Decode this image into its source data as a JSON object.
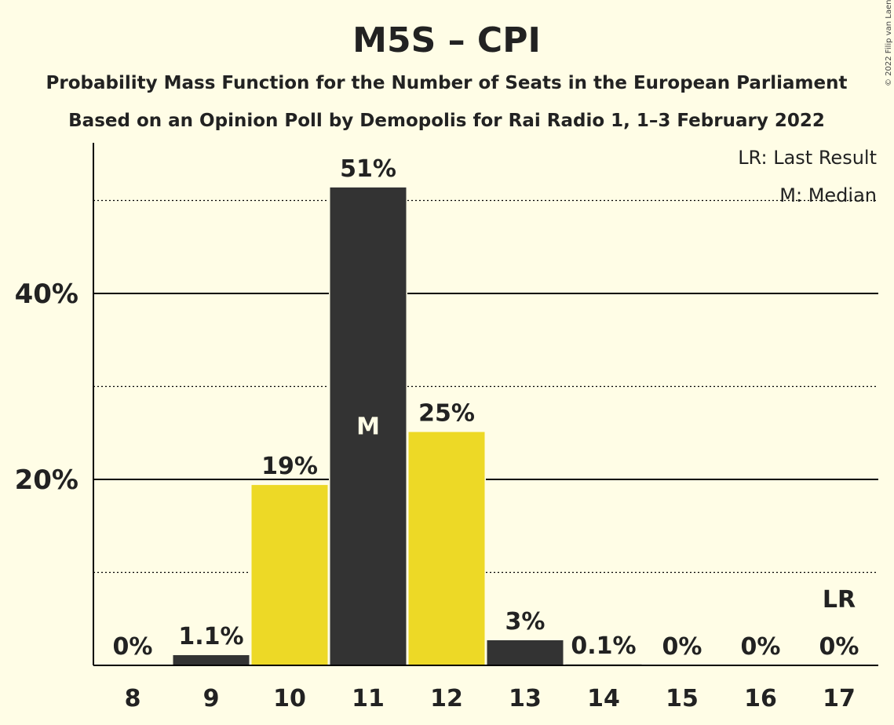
{
  "title": "M5S – CPI",
  "subtitle1": "Probability Mass Function for the Number of Seats in the European Parliament",
  "subtitle2": "Based on an Opinion Poll by Demopolis for Rai Radio 1, 1–3 February 2022",
  "copyright": "© 2022 Filip van Laenen",
  "legend": {
    "lr": "LR: Last Result",
    "median": "M: Median"
  },
  "colors": {
    "background": "#FFFDE6",
    "dark": "#333333",
    "yellow": "#EDD926",
    "text": "#222222"
  },
  "chart_data": {
    "type": "bar",
    "categories": [
      "8",
      "9",
      "10",
      "11",
      "12",
      "13",
      "14",
      "15",
      "16",
      "17"
    ],
    "values": [
      0,
      1.1,
      19.4,
      51.4,
      25.1,
      2.7,
      0.1,
      0,
      0,
      0
    ],
    "labels": [
      "0%",
      "1.1%",
      "19%",
      "51%",
      "25%",
      "3%",
      "0.1%",
      "0%",
      "0%",
      "0%"
    ],
    "bar_colors": [
      "dark",
      "dark",
      "yellow",
      "dark",
      "yellow",
      "dark",
      "dark",
      "dark",
      "dark",
      "dark"
    ],
    "median_category": "11",
    "median_marker": "M",
    "last_result_category": "17",
    "last_result_marker": "LR",
    "ylim": [
      0,
      56
    ],
    "yticks": [
      {
        "value": 10,
        "label": "",
        "style": "dotted"
      },
      {
        "value": 20,
        "label": "20%",
        "style": "solid"
      },
      {
        "value": 30,
        "label": "",
        "style": "dotted"
      },
      {
        "value": 40,
        "label": "40%",
        "style": "solid"
      },
      {
        "value": 50,
        "label": "",
        "style": "dotted"
      }
    ],
    "xlabel": "",
    "ylabel": "",
    "legend_position": "top-right"
  }
}
